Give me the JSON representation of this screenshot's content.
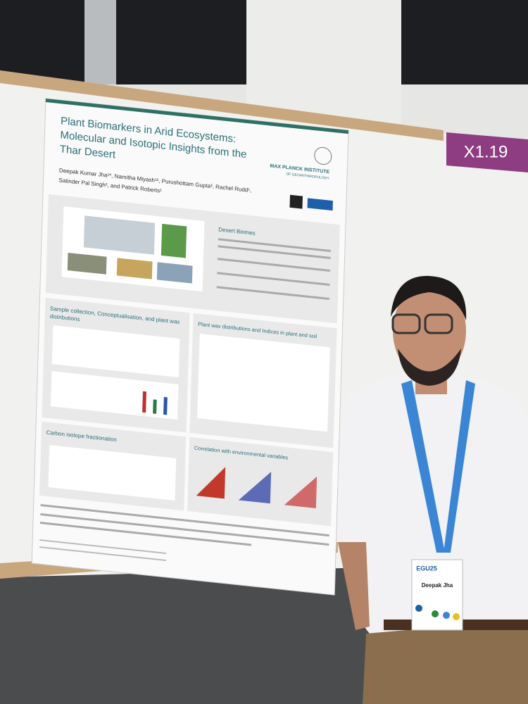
{
  "board_label": "X1.19",
  "poster": {
    "title": [
      "Plant Biomarkers in Arid Ecosystems:",
      "Molecular and Isotopic Insights from the",
      "Thar Desert"
    ],
    "authors": [
      "Deepak Kumar Jha¹*, Namitha Miyash¹², Purushottam Gupta³, Rachel Rudd¹,",
      "Satinder Pal Singh², and Patrick Roberts¹"
    ],
    "institute": "MAX PLANCK INSTITUTE",
    "institute_sub": "OF GEOANTHROPOLOGY",
    "sections": [
      "Desert Biomes",
      "Sample collection, Conceptualisation, and plant wax",
      "distributions",
      "Plant wax distributions and Indices in plant and soil",
      "Carbon isotope fractionation",
      "Correlation with environmental variables"
    ]
  },
  "badge": {
    "event": "EGU25",
    "name": "Deepak Jha"
  }
}
